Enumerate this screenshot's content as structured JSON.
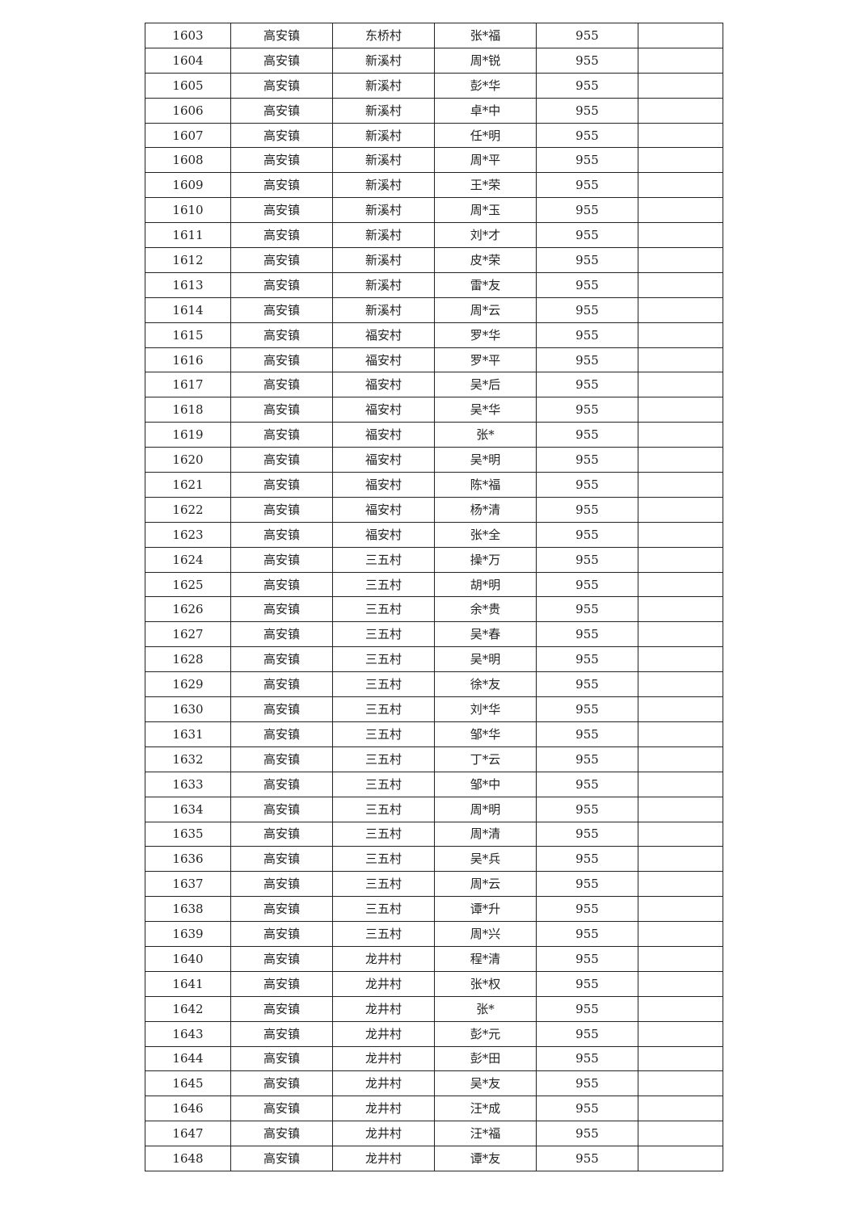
{
  "table": {
    "rows": [
      [
        "1603",
        "高安镇",
        "东桥村",
        "张*福",
        "955",
        ""
      ],
      [
        "1604",
        "高安镇",
        "新溪村",
        "周*锐",
        "955",
        ""
      ],
      [
        "1605",
        "高安镇",
        "新溪村",
        "彭*华",
        "955",
        ""
      ],
      [
        "1606",
        "高安镇",
        "新溪村",
        "卓*中",
        "955",
        ""
      ],
      [
        "1607",
        "高安镇",
        "新溪村",
        "任*明",
        "955",
        ""
      ],
      [
        "1608",
        "高安镇",
        "新溪村",
        "周*平",
        "955",
        ""
      ],
      [
        "1609",
        "高安镇",
        "新溪村",
        "王*荣",
        "955",
        ""
      ],
      [
        "1610",
        "高安镇",
        "新溪村",
        "周*玉",
        "955",
        ""
      ],
      [
        "1611",
        "高安镇",
        "新溪村",
        "刘*才",
        "955",
        ""
      ],
      [
        "1612",
        "高安镇",
        "新溪村",
        "皮*荣",
        "955",
        ""
      ],
      [
        "1613",
        "高安镇",
        "新溪村",
        "雷*友",
        "955",
        ""
      ],
      [
        "1614",
        "高安镇",
        "新溪村",
        "周*云",
        "955",
        ""
      ],
      [
        "1615",
        "高安镇",
        "福安村",
        "罗*华",
        "955",
        ""
      ],
      [
        "1616",
        "高安镇",
        "福安村",
        "罗*平",
        "955",
        ""
      ],
      [
        "1617",
        "高安镇",
        "福安村",
        "吴*后",
        "955",
        ""
      ],
      [
        "1618",
        "高安镇",
        "福安村",
        "吴*华",
        "955",
        ""
      ],
      [
        "1619",
        "高安镇",
        "福安村",
        "张*",
        "955",
        ""
      ],
      [
        "1620",
        "高安镇",
        "福安村",
        "吴*明",
        "955",
        ""
      ],
      [
        "1621",
        "高安镇",
        "福安村",
        "陈*福",
        "955",
        ""
      ],
      [
        "1622",
        "高安镇",
        "福安村",
        "杨*清",
        "955",
        ""
      ],
      [
        "1623",
        "高安镇",
        "福安村",
        "张*全",
        "955",
        ""
      ],
      [
        "1624",
        "高安镇",
        "三五村",
        "操*万",
        "955",
        ""
      ],
      [
        "1625",
        "高安镇",
        "三五村",
        "胡*明",
        "955",
        ""
      ],
      [
        "1626",
        "高安镇",
        "三五村",
        "余*贵",
        "955",
        ""
      ],
      [
        "1627",
        "高安镇",
        "三五村",
        "吴*春",
        "955",
        ""
      ],
      [
        "1628",
        "高安镇",
        "三五村",
        "吴*明",
        "955",
        ""
      ],
      [
        "1629",
        "高安镇",
        "三五村",
        "徐*友",
        "955",
        ""
      ],
      [
        "1630",
        "高安镇",
        "三五村",
        "刘*华",
        "955",
        ""
      ],
      [
        "1631",
        "高安镇",
        "三五村",
        "邹*华",
        "955",
        ""
      ],
      [
        "1632",
        "高安镇",
        "三五村",
        "丁*云",
        "955",
        ""
      ],
      [
        "1633",
        "高安镇",
        "三五村",
        "邹*中",
        "955",
        ""
      ],
      [
        "1634",
        "高安镇",
        "三五村",
        "周*明",
        "955",
        ""
      ],
      [
        "1635",
        "高安镇",
        "三五村",
        "周*清",
        "955",
        ""
      ],
      [
        "1636",
        "高安镇",
        "三五村",
        "吴*兵",
        "955",
        ""
      ],
      [
        "1637",
        "高安镇",
        "三五村",
        "周*云",
        "955",
        ""
      ],
      [
        "1638",
        "高安镇",
        "三五村",
        "谭*升",
        "955",
        ""
      ],
      [
        "1639",
        "高安镇",
        "三五村",
        "周*兴",
        "955",
        ""
      ],
      [
        "1640",
        "高安镇",
        "龙井村",
        "程*清",
        "955",
        ""
      ],
      [
        "1641",
        "高安镇",
        "龙井村",
        "张*权",
        "955",
        ""
      ],
      [
        "1642",
        "高安镇",
        "龙井村",
        "张*",
        "955",
        ""
      ],
      [
        "1643",
        "高安镇",
        "龙井村",
        "彭*元",
        "955",
        ""
      ],
      [
        "1644",
        "高安镇",
        "龙井村",
        "彭*田",
        "955",
        ""
      ],
      [
        "1645",
        "高安镇",
        "龙井村",
        "吴*友",
        "955",
        ""
      ],
      [
        "1646",
        "高安镇",
        "龙井村",
        "汪*成",
        "955",
        ""
      ],
      [
        "1647",
        "高安镇",
        "龙井村",
        "汪*福",
        "955",
        ""
      ],
      [
        "1648",
        "高安镇",
        "龙井村",
        "谭*友",
        "955",
        ""
      ]
    ]
  }
}
